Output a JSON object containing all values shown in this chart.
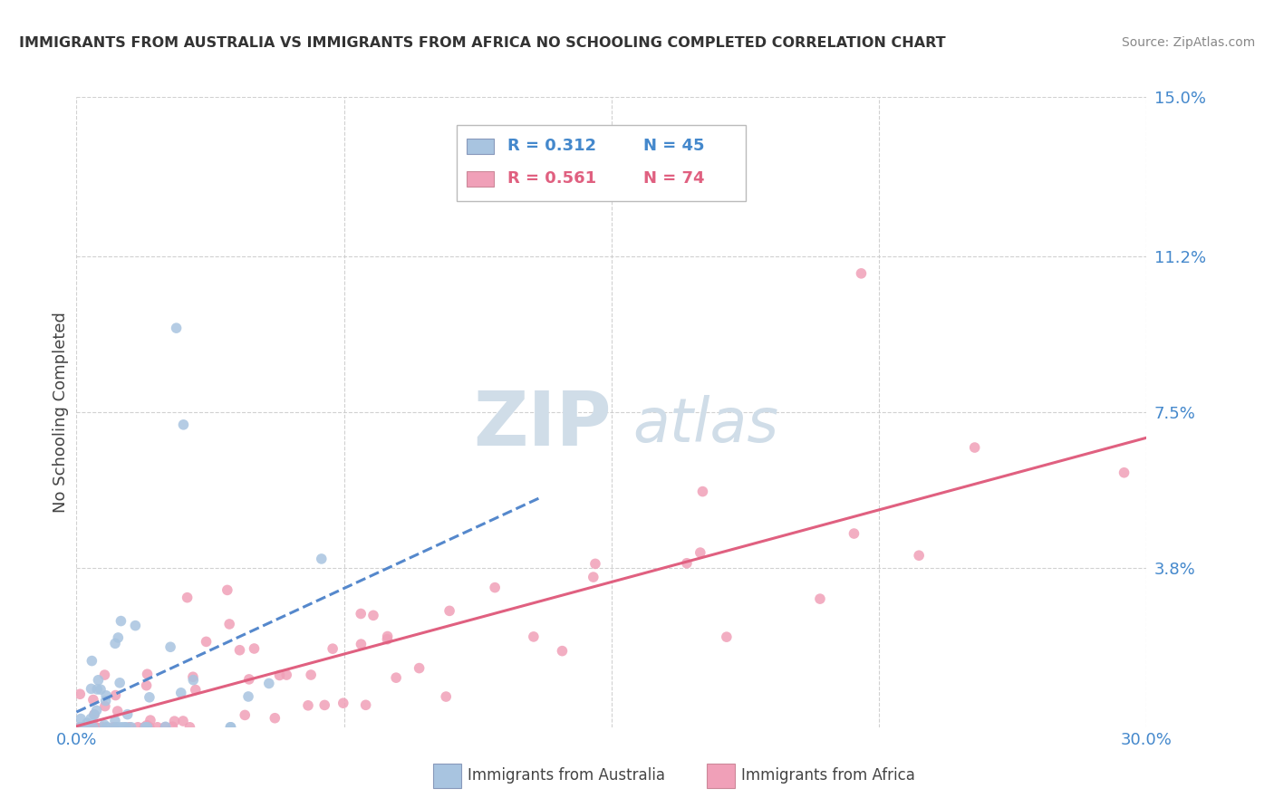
{
  "title": "IMMIGRANTS FROM AUSTRALIA VS IMMIGRANTS FROM AFRICA NO SCHOOLING COMPLETED CORRELATION CHART",
  "source": "Source: ZipAtlas.com",
  "ylabel": "No Schooling Completed",
  "xlim": [
    0.0,
    0.3
  ],
  "ylim": [
    0.0,
    0.15
  ],
  "ytick_positions": [
    0.038,
    0.075,
    0.112,
    0.15
  ],
  "ytick_labels": [
    "3.8%",
    "7.5%",
    "11.2%",
    "15.0%"
  ],
  "legend1_r": "R = 0.312",
  "legend1_n": "N = 45",
  "legend2_r": "R = 0.561",
  "legend2_n": "N = 74",
  "legend1_label": "Immigrants from Australia",
  "legend2_label": "Immigrants from Africa",
  "australia_color": "#a8c4e0",
  "africa_color": "#f0a0b8",
  "australia_line_color": "#5588cc",
  "africa_line_color": "#e06080",
  "blue_text_color": "#4488cc",
  "pink_text_color": "#e06080",
  "background_color": "#ffffff",
  "grid_color": "#cccccc",
  "title_color": "#333333",
  "watermark_color": "#d0dde8",
  "source_color": "#888888"
}
